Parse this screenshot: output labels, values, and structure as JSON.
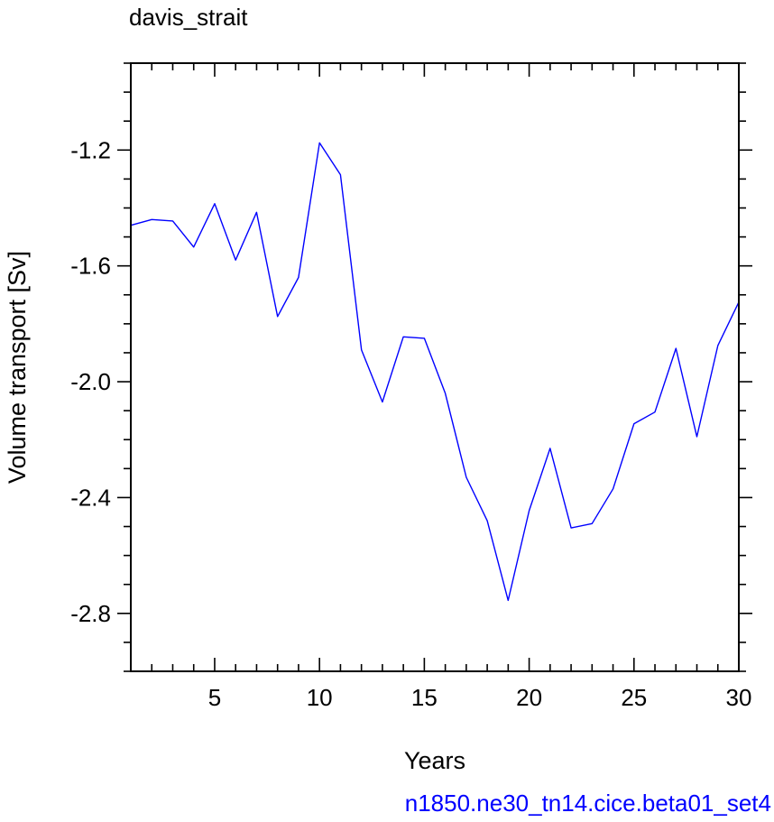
{
  "chart_data": {
    "type": "line",
    "title": "davis_strait",
    "xlabel": "Years",
    "ylabel": "Volume transport [Sv]",
    "annotation": "n1850.ne30_tn14.cice.beta01_set4",
    "xlim": [
      1,
      30
    ],
    "ylim": [
      -3.0,
      -0.9
    ],
    "xticks": [
      5,
      10,
      15,
      20,
      25,
      30
    ],
    "xtick_labels": [
      "5",
      "10",
      "15",
      "20",
      "25",
      "30"
    ],
    "yticks": [
      -2.8,
      -2.4,
      -2.0,
      -1.6,
      -1.2
    ],
    "ytick_labels": [
      "-2.8",
      "-2.4",
      "-2.0",
      "-1.6",
      "-1.2"
    ],
    "grid": false,
    "line_color": "#0000ff",
    "annotation_color": "#0000ff",
    "series": [
      {
        "x": [
          1,
          2,
          3,
          4,
          5,
          6,
          7,
          8,
          9,
          10,
          11,
          12,
          13,
          14,
          15,
          16,
          17,
          18,
          19,
          20,
          21,
          22,
          23,
          24,
          25,
          26,
          27,
          28,
          29,
          30
        ],
        "values": [
          -1.46,
          -1.44,
          -1.445,
          -1.535,
          -1.385,
          -1.58,
          -1.415,
          -1.775,
          -1.64,
          -1.175,
          -1.285,
          -1.89,
          -2.07,
          -1.845,
          -1.85,
          -2.04,
          -2.33,
          -2.48,
          -2.755,
          -2.445,
          -2.23,
          -2.505,
          -2.49,
          -2.37,
          -2.145,
          -2.105,
          -1.885,
          -2.19,
          -1.875,
          -1.725
        ]
      }
    ]
  }
}
